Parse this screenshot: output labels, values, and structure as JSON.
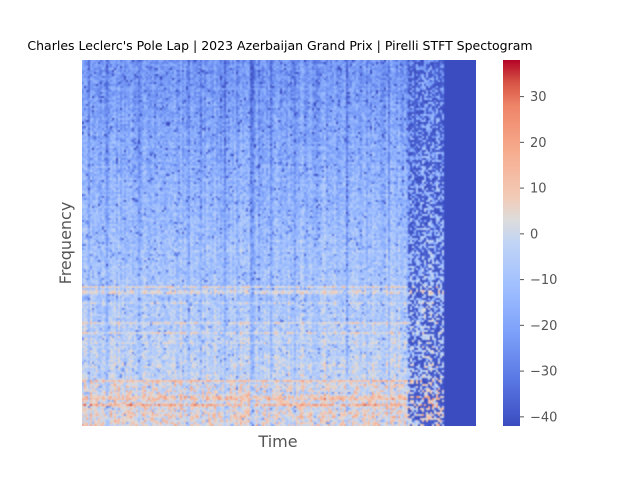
{
  "chart_data": {
    "type": "heatmap",
    "title": "Charles Leclerc's Pole Lap | 2023 Azerbaijan Grand Prix | Pirelli STFT Spectogram",
    "xlabel": "Time",
    "ylabel": "Frequency",
    "x_ticks_shown": false,
    "y_ticks_shown": false,
    "grid": false,
    "colormap": "coolwarm",
    "colorbar": {
      "ticks": [
        30,
        20,
        10,
        0,
        -10,
        -20,
        -30,
        -40
      ],
      "tick_labels": [
        "30",
        "20",
        "10",
        "0",
        "−10",
        "−20",
        "−30",
        "−40"
      ],
      "range": [
        -42,
        38
      ]
    },
    "colors": {
      "low": "#3b4cc0",
      "mid": "#dddcdc",
      "high": "#b40426"
    },
    "signal_end_fraction": 0.92,
    "fill_value_after_signal": -42
  }
}
